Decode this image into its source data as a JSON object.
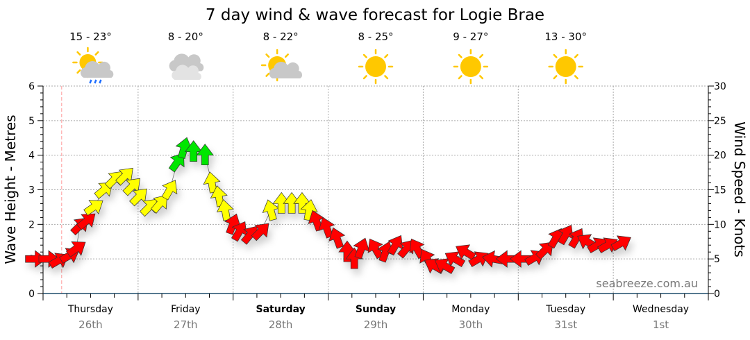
{
  "chart_data": {
    "type": "scatter",
    "title": "7 day wind & wave forecast for Logie Brae",
    "ylabel_left": "Wave Height - Metres",
    "ylabel_right": "Wind Speed - Knots",
    "ylim_left": [
      0,
      6
    ],
    "ylim_right": [
      0,
      30
    ],
    "yticks_left": [
      "0",
      "1",
      "2",
      "3",
      "4",
      "5",
      "6"
    ],
    "yticks_right": [
      "0",
      "5",
      "10",
      "15",
      "20",
      "25",
      "30"
    ],
    "xlim_hours": [
      0,
      168
    ],
    "grid": true,
    "watermark": "seabreeze.com.au",
    "days": [
      {
        "name": "Thursday",
        "date": "26th",
        "bold": false,
        "temp": "15 - 23°",
        "icon": "sun-cloud-rain-icon"
      },
      {
        "name": "Friday",
        "date": "27th",
        "bold": false,
        "temp": "8 - 20°",
        "icon": "cloudy-icon"
      },
      {
        "name": "Saturday",
        "date": "28th",
        "bold": true,
        "temp": "8 - 22°",
        "icon": "sun-cloud-icon"
      },
      {
        "name": "Sunday",
        "date": "29th",
        "bold": true,
        "temp": "8 - 25°",
        "icon": "sun-icon"
      },
      {
        "name": "Monday",
        "date": "30th",
        "bold": false,
        "temp": "9 - 27°",
        "icon": "sun-icon"
      },
      {
        "name": "Tuesday",
        "date": "31st",
        "bold": false,
        "temp": "13 - 30°",
        "icon": "sun-icon"
      },
      {
        "name": "Wednesday",
        "date": "1st",
        "bold": false,
        "temp": "",
        "icon": ""
      }
    ],
    "now_marker_hours": 4.7,
    "colors": {
      "light": "#ff0000",
      "moderate": "#ffff00",
      "strong": "#00e600",
      "sun": "#ffc800",
      "cloud": "#c8c8c8",
      "rain": "#1e6eff"
    },
    "series": [
      {
        "name": "Wind",
        "points": [
          {
            "h": -2,
            "kt": 5,
            "dir": 90,
            "c": "light"
          },
          {
            "h": 1.4,
            "kt": 5,
            "dir": 90,
            "c": "light"
          },
          {
            "h": 4,
            "kt": 4.8,
            "dir": 60,
            "c": "light"
          },
          {
            "h": 6.7,
            "kt": 5.5,
            "dir": 60,
            "c": "light"
          },
          {
            "h": 8.4,
            "kt": 6.5,
            "dir": 55,
            "c": "light"
          },
          {
            "h": 9.3,
            "kt": 9.8,
            "dir": 45,
            "c": "light"
          },
          {
            "h": 11,
            "kt": 10.5,
            "dir": 50,
            "c": "light"
          },
          {
            "h": 12.8,
            "kt": 12.5,
            "dir": 55,
            "c": "moderate"
          },
          {
            "h": 15.4,
            "kt": 15,
            "dir": 50,
            "c": "moderate"
          },
          {
            "h": 18,
            "kt": 16.5,
            "dir": 45,
            "c": "moderate"
          },
          {
            "h": 20.7,
            "kt": 17,
            "dir": 45,
            "c": "moderate"
          },
          {
            "h": 22.5,
            "kt": 15.5,
            "dir": 45,
            "c": "moderate"
          },
          {
            "h": 24.2,
            "kt": 14,
            "dir": 45,
            "c": "moderate"
          },
          {
            "h": 26.8,
            "kt": 12.5,
            "dir": 45,
            "c": "moderate"
          },
          {
            "h": 29.5,
            "kt": 13,
            "dir": 40,
            "c": "moderate"
          },
          {
            "h": 32,
            "kt": 15,
            "dir": 30,
            "c": "moderate"
          },
          {
            "h": 33.9,
            "kt": 19,
            "dir": 35,
            "c": "strong"
          },
          {
            "h": 35.6,
            "kt": 21,
            "dir": 15,
            "c": "strong"
          },
          {
            "h": 38,
            "kt": 20.5,
            "dir": 0,
            "c": "strong"
          },
          {
            "h": 40.9,
            "kt": 20,
            "dir": 0,
            "c": "strong"
          },
          {
            "h": 42.6,
            "kt": 16,
            "dir": 350,
            "c": "moderate"
          },
          {
            "h": 44.4,
            "kt": 14,
            "dir": 350,
            "c": "moderate"
          },
          {
            "h": 46,
            "kt": 12,
            "dir": 350,
            "c": "moderate"
          },
          {
            "h": 47.9,
            "kt": 10,
            "dir": 20,
            "c": "light"
          },
          {
            "h": 49.6,
            "kt": 9,
            "dir": 30,
            "c": "light"
          },
          {
            "h": 52.3,
            "kt": 8.5,
            "dir": 40,
            "c": "light"
          },
          {
            "h": 55,
            "kt": 9,
            "dir": 45,
            "c": "light"
          },
          {
            "h": 57.5,
            "kt": 12,
            "dir": 345,
            "c": "moderate"
          },
          {
            "h": 60.2,
            "kt": 13,
            "dir": 0,
            "c": "moderate"
          },
          {
            "h": 62.8,
            "kt": 13,
            "dir": 0,
            "c": "moderate"
          },
          {
            "h": 65.4,
            "kt": 13,
            "dir": 0,
            "c": "moderate"
          },
          {
            "h": 67.2,
            "kt": 12,
            "dir": 10,
            "c": "moderate"
          },
          {
            "h": 69,
            "kt": 10.5,
            "dir": 340,
            "c": "light"
          },
          {
            "h": 71.6,
            "kt": 9.5,
            "dir": 340,
            "c": "light"
          },
          {
            "h": 74.2,
            "kt": 8,
            "dir": 340,
            "c": "light"
          },
          {
            "h": 76.8,
            "kt": 6,
            "dir": 0,
            "c": "light"
          },
          {
            "h": 78.6,
            "kt": 5,
            "dir": 0,
            "c": "light"
          },
          {
            "h": 80.4,
            "kt": 6.5,
            "dir": 20,
            "c": "light"
          },
          {
            "h": 83.9,
            "kt": 6.5,
            "dir": 330,
            "c": "light"
          },
          {
            "h": 86.5,
            "kt": 6,
            "dir": 20,
            "c": "light"
          },
          {
            "h": 89,
            "kt": 7,
            "dir": 30,
            "c": "light"
          },
          {
            "h": 91.8,
            "kt": 6.5,
            "dir": 40,
            "c": "light"
          },
          {
            "h": 94.4,
            "kt": 6.5,
            "dir": 330,
            "c": "light"
          },
          {
            "h": 97,
            "kt": 5,
            "dir": 330,
            "c": "light"
          },
          {
            "h": 98.8,
            "kt": 4,
            "dir": 300,
            "c": "light"
          },
          {
            "h": 101.4,
            "kt": 4,
            "dir": 300,
            "c": "light"
          },
          {
            "h": 104,
            "kt": 5,
            "dir": 300,
            "c": "light"
          },
          {
            "h": 106.7,
            "kt": 6,
            "dir": 300,
            "c": "light"
          },
          {
            "h": 110,
            "kt": 5,
            "dir": 60,
            "c": "light"
          },
          {
            "h": 113.7,
            "kt": 5,
            "dir": 280,
            "c": "light"
          },
          {
            "h": 117.2,
            "kt": 5,
            "dir": 270,
            "c": "light"
          },
          {
            "h": 120.7,
            "kt": 5,
            "dir": 270,
            "c": "light"
          },
          {
            "h": 124.2,
            "kt": 5.2,
            "dir": 60,
            "c": "light"
          },
          {
            "h": 126.8,
            "kt": 6.3,
            "dir": 45,
            "c": "light"
          },
          {
            "h": 129.5,
            "kt": 8,
            "dir": 30,
            "c": "light"
          },
          {
            "h": 132,
            "kt": 8.5,
            "dir": 30,
            "c": "light"
          },
          {
            "h": 134.7,
            "kt": 8,
            "dir": 30,
            "c": "light"
          },
          {
            "h": 137.4,
            "kt": 7.5,
            "dir": 300,
            "c": "light"
          },
          {
            "h": 140,
            "kt": 7,
            "dir": 60,
            "c": "light"
          },
          {
            "h": 142.6,
            "kt": 7,
            "dir": 60,
            "c": "light"
          },
          {
            "h": 146,
            "kt": 7.3,
            "dir": 60,
            "c": "light"
          }
        ]
      }
    ]
  }
}
